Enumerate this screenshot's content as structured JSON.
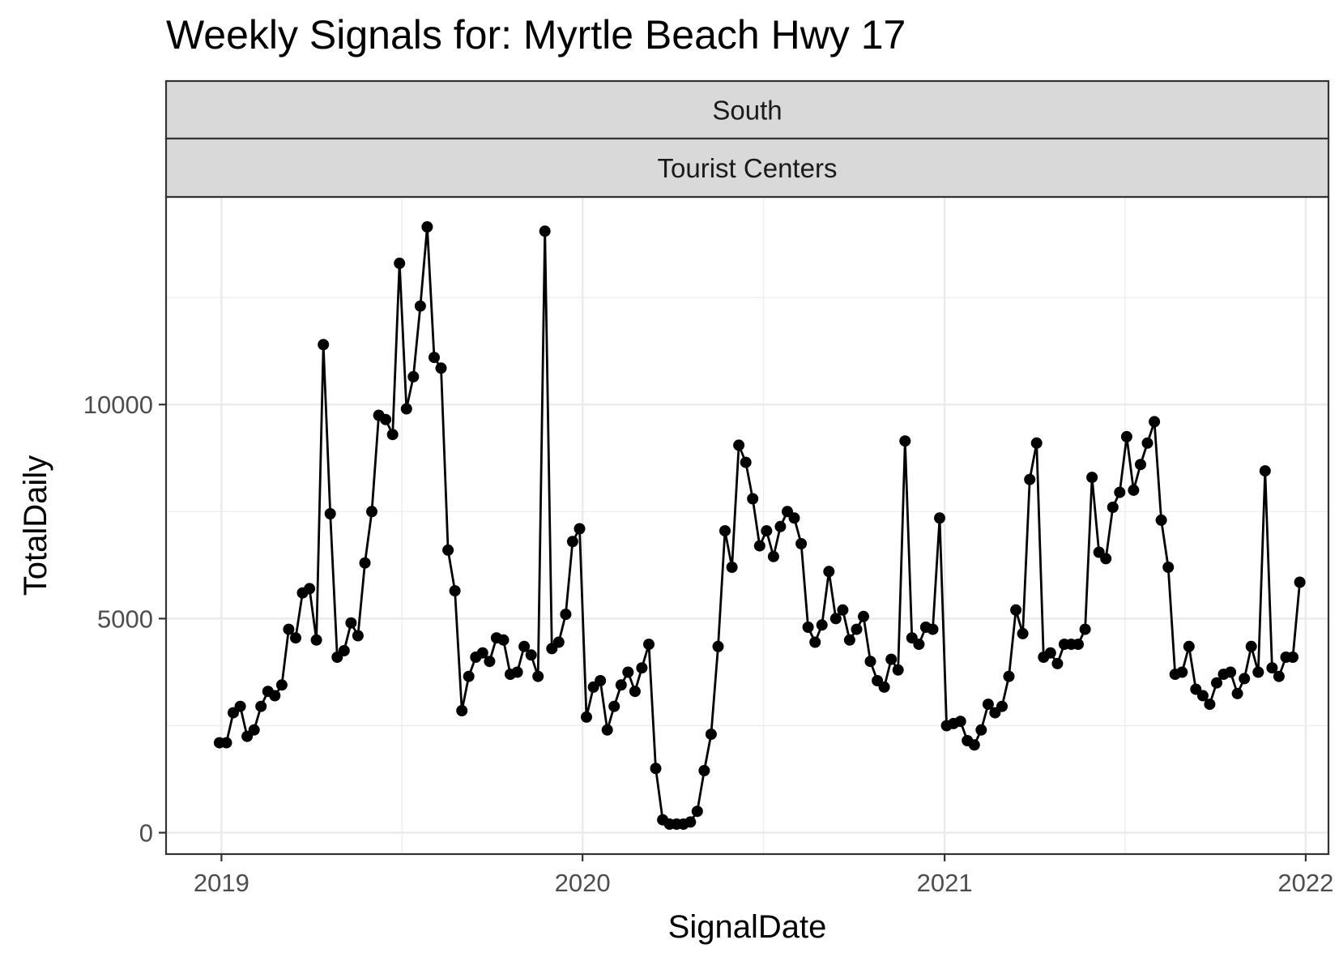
{
  "title": "Weekly Signals for: Myrtle Beach Hwy 17",
  "chart_data": {
    "type": "line",
    "title": "Weekly Signals for: Myrtle Beach Hwy 17",
    "xlabel": "SignalDate",
    "ylabel": "TotalDaily",
    "facet_strips": [
      "South",
      "Tourist Centers"
    ],
    "xlim": [
      "2018-11-06",
      "2022-01-24"
    ],
    "ylim": [
      -500,
      14850
    ],
    "x_ticks": [
      {
        "date": "2019-01-01",
        "label": "2019"
      },
      {
        "date": "2020-01-01",
        "label": "2020"
      },
      {
        "date": "2021-01-01",
        "label": "2021"
      },
      {
        "date": "2022-01-01",
        "label": "2022"
      }
    ],
    "y_ticks": [
      0,
      5000,
      10000
    ],
    "grid": true,
    "markers": true,
    "color": "#000000",
    "series": [
      {
        "x": [
          "2018-12-30",
          "2019-01-06",
          "2019-01-13",
          "2019-01-20",
          "2019-01-27",
          "2019-02-03",
          "2019-02-10",
          "2019-02-17",
          "2019-02-24",
          "2019-03-03",
          "2019-03-10",
          "2019-03-17",
          "2019-03-24",
          "2019-03-31",
          "2019-04-07",
          "2019-04-14",
          "2019-04-21",
          "2019-04-28",
          "2019-05-05",
          "2019-05-12",
          "2019-05-19",
          "2019-05-26",
          "2019-06-02",
          "2019-06-09",
          "2019-06-16",
          "2019-06-23",
          "2019-06-30",
          "2019-07-07",
          "2019-07-14",
          "2019-07-21",
          "2019-07-28",
          "2019-08-04",
          "2019-08-11",
          "2019-08-18",
          "2019-08-25",
          "2019-09-01",
          "2019-09-08",
          "2019-09-15",
          "2019-09-22",
          "2019-09-29",
          "2019-10-06",
          "2019-10-13",
          "2019-10-20",
          "2019-10-27",
          "2019-11-03",
          "2019-11-10",
          "2019-11-17",
          "2019-11-24",
          "2019-12-01",
          "2019-12-08",
          "2019-12-15",
          "2019-12-22",
          "2019-12-29",
          "2020-01-05",
          "2020-01-12",
          "2020-01-19",
          "2020-01-26",
          "2020-02-02",
          "2020-02-09",
          "2020-02-16",
          "2020-02-23",
          "2020-03-01",
          "2020-03-08",
          "2020-03-15",
          "2020-03-22",
          "2020-03-29",
          "2020-04-05",
          "2020-04-12",
          "2020-04-19",
          "2020-04-26",
          "2020-05-03",
          "2020-05-10",
          "2020-05-17",
          "2020-05-24",
          "2020-05-31",
          "2020-06-07",
          "2020-06-14",
          "2020-06-21",
          "2020-06-28",
          "2020-07-05",
          "2020-07-12",
          "2020-07-19",
          "2020-07-26",
          "2020-08-02",
          "2020-08-09",
          "2020-08-16",
          "2020-08-23",
          "2020-08-30",
          "2020-09-06",
          "2020-09-13",
          "2020-09-20",
          "2020-09-27",
          "2020-10-04",
          "2020-10-11",
          "2020-10-18",
          "2020-10-25",
          "2020-11-01",
          "2020-11-08",
          "2020-11-15",
          "2020-11-22",
          "2020-11-29",
          "2020-12-06",
          "2020-12-13",
          "2020-12-20",
          "2020-12-27",
          "2021-01-03",
          "2021-01-10",
          "2021-01-17",
          "2021-01-24",
          "2021-01-31",
          "2021-02-07",
          "2021-02-14",
          "2021-02-21",
          "2021-02-28",
          "2021-03-07",
          "2021-03-14",
          "2021-03-21",
          "2021-03-28",
          "2021-04-04",
          "2021-04-11",
          "2021-04-18",
          "2021-04-25",
          "2021-05-02",
          "2021-05-09",
          "2021-05-16",
          "2021-05-23",
          "2021-05-30",
          "2021-06-06",
          "2021-06-13",
          "2021-06-20",
          "2021-06-27",
          "2021-07-04",
          "2021-07-11",
          "2021-07-18",
          "2021-07-25",
          "2021-08-01",
          "2021-08-08",
          "2021-08-15",
          "2021-08-22",
          "2021-08-29",
          "2021-09-05",
          "2021-09-12",
          "2021-09-19",
          "2021-09-26",
          "2021-10-03",
          "2021-10-10",
          "2021-10-17",
          "2021-10-24",
          "2021-10-31",
          "2021-11-07",
          "2021-11-14",
          "2021-11-21",
          "2021-11-28",
          "2021-12-05",
          "2021-12-12",
          "2021-12-19",
          "2021-12-26"
        ],
        "values": [
          2100,
          2100,
          2800,
          2950,
          2250,
          2400,
          2950,
          3300,
          3200,
          3450,
          4750,
          4550,
          5600,
          5700,
          4500,
          11400,
          7450,
          4100,
          4250,
          4900,
          4600,
          6300,
          7500,
          9750,
          9650,
          9300,
          13300,
          9900,
          10650,
          12300,
          14150,
          11100,
          10850,
          6600,
          5650,
          2850,
          3650,
          4100,
          4200,
          4000,
          4550,
          4500,
          3700,
          3750,
          4350,
          4150,
          3650,
          14050,
          4300,
          4450,
          5100,
          6800,
          7100,
          2700,
          3400,
          3550,
          2400,
          2950,
          3450,
          3750,
          3300,
          3850,
          4400,
          1500,
          300,
          200,
          200,
          200,
          250,
          500,
          1450,
          2300,
          4350,
          7050,
          6200,
          9050,
          8650,
          7800,
          6700,
          7050,
          6450,
          7150,
          7500,
          7350,
          6750,
          4800,
          4450,
          4850,
          6100,
          5000,
          5200,
          4500,
          4750,
          5050,
          4000,
          3550,
          3400,
          4050,
          3800,
          9150,
          4550,
          4400,
          4800,
          4750,
          7350,
          2500,
          2550,
          2600,
          2150,
          2050,
          2400,
          3000,
          2800,
          2950,
          3650,
          5200,
          4650,
          8250,
          9100,
          4100,
          4200,
          3950,
          4400,
          4400,
          4400,
          4750,
          8300,
          6550,
          6400,
          7600,
          7950,
          9250,
          8000,
          8600,
          9100,
          9600,
          7300,
          6200,
          3700,
          3750,
          4350,
          3350,
          3200,
          3000,
          3500,
          3700,
          3750,
          3250,
          3600,
          4350,
          3750,
          8450,
          3850,
          3650,
          4100,
          4100,
          5850
        ]
      }
    ]
  }
}
